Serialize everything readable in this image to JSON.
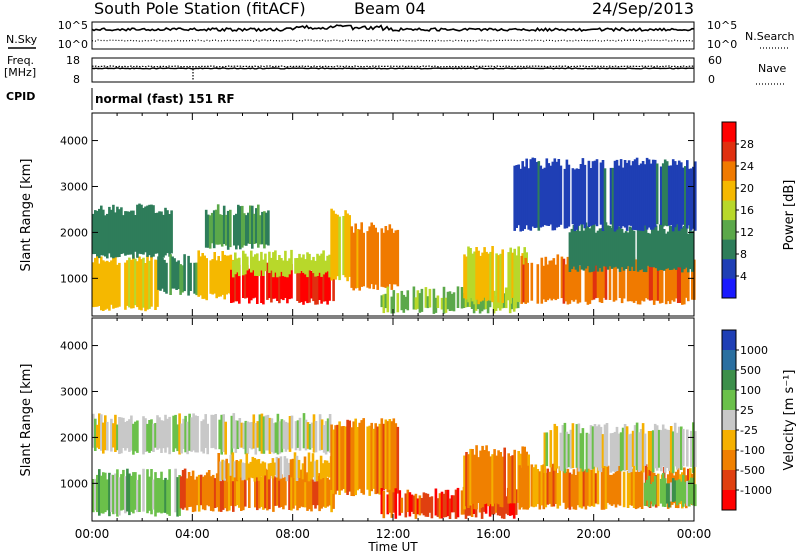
{
  "header": {
    "station": "South Pole Station (fitACF)",
    "beam": "Beam 04",
    "date": "24/Sep/2013"
  },
  "top_panels": {
    "nsky_label": "N.Sky",
    "nsky_left_ticks": [
      "10^5",
      "10^0"
    ],
    "nsky_right_ticks": [
      "10^5",
      "10^0"
    ],
    "nsearch_label": "N.Search",
    "freq_label": "Freq.",
    "freq_unit": "[MHz]",
    "freq_ticks": [
      "18",
      "8"
    ],
    "nave_ticks": [
      "60",
      "0"
    ],
    "nave_label": "Nave",
    "cpid_label": "CPID",
    "cpid_value": "normal (fast) 151 RF"
  },
  "colors": {
    "power_scale": [
      "#1a1aff",
      "#1f3fb5",
      "#2e7d5a",
      "#5ba84a",
      "#b8d82a",
      "#f5b800",
      "#f07a00",
      "#e03010",
      "#ff0000"
    ],
    "velocity_scale": [
      "#1f3fb5",
      "#2a6fa0",
      "#3c8f4a",
      "#6bc04a",
      "#c8c8c8",
      "#f5b000",
      "#f08000",
      "#e04010",
      "#ff0000"
    ]
  },
  "chart_data": [
    {
      "type": "heatmap",
      "title": "Power",
      "xlabel": "Time UT",
      "ylabel": "Slant Range [km]",
      "x_ticks": [
        "00:00",
        "04:00",
        "08:00",
        "12:00",
        "16:00",
        "20:00",
        "00:00"
      ],
      "xlim_hours": [
        0,
        24
      ],
      "y_ticks": [
        1000,
        2000,
        3000,
        4000
      ],
      "ylim": [
        180,
        4600
      ],
      "colorbar_label": "Power [dB]",
      "colorbar_ticks": [
        4,
        8,
        12,
        16,
        20,
        24,
        28
      ],
      "colorbar_range": [
        0,
        32
      ],
      "regions": [
        {
          "t0": 0.0,
          "t1": 2.6,
          "r_lo": 350,
          "r_hi": 1400,
          "level": 17
        },
        {
          "t0": 0.0,
          "t1": 3.2,
          "r_lo": 1500,
          "r_hi": 2500,
          "level": 7
        },
        {
          "t0": 2.6,
          "t1": 4.2,
          "r_lo": 700,
          "r_hi": 1400,
          "level": 8
        },
        {
          "t0": 4.2,
          "t1": 5.6,
          "r_lo": 600,
          "r_hi": 1500,
          "level": 18
        },
        {
          "t0": 4.5,
          "t1": 7.0,
          "r_lo": 1700,
          "r_hi": 2500,
          "level": 9
        },
        {
          "t0": 5.5,
          "t1": 9.6,
          "r_lo": 500,
          "r_hi": 1250,
          "level": 27
        },
        {
          "t0": 5.5,
          "t1": 9.8,
          "r_lo": 1100,
          "r_hi": 1500,
          "level": 14
        },
        {
          "t0": 9.5,
          "t1": 10.3,
          "r_lo": 1000,
          "r_hi": 2400,
          "level": 17
        },
        {
          "t0": 10.3,
          "t1": 12.2,
          "r_lo": 800,
          "r_hi": 2100,
          "level": 21
        },
        {
          "t0": 11.5,
          "t1": 17.0,
          "r_lo": 300,
          "r_hi": 700,
          "level": 12
        },
        {
          "t0": 14.8,
          "t1": 17.3,
          "r_lo": 500,
          "r_hi": 1600,
          "level": 16
        },
        {
          "t0": 17.0,
          "t1": 24.0,
          "r_lo": 500,
          "r_hi": 1400,
          "level": 22
        },
        {
          "t0": 19.0,
          "t1": 24.0,
          "r_lo": 1200,
          "r_hi": 2100,
          "level": 7
        },
        {
          "t0": 16.8,
          "t1": 24.0,
          "r_lo": 2100,
          "r_hi": 3500,
          "level": 4
        }
      ]
    },
    {
      "type": "heatmap",
      "title": "Velocity",
      "xlabel": "Time UT",
      "ylabel": "Slant Range [km]",
      "x_ticks": [
        "00:00",
        "04:00",
        "08:00",
        "12:00",
        "16:00",
        "20:00",
        "00:00"
      ],
      "xlim_hours": [
        0,
        24
      ],
      "y_ticks": [
        1000,
        2000,
        3000,
        4000
      ],
      "ylim": [
        180,
        4600
      ],
      "colorbar_label": "Velocity [m s⁻¹]",
      "colorbar_ticks": [
        "1000",
        "500",
        "100",
        "25",
        "-25",
        "-100",
        "-500",
        "-1000"
      ],
      "regions": [
        {
          "t0": 0.0,
          "t1": 3.5,
          "r_lo": 350,
          "r_hi": 1200,
          "level": 3
        },
        {
          "t0": 0.0,
          "t1": 9.5,
          "r_lo": 1700,
          "r_hi": 2400,
          "level": 4
        },
        {
          "t0": 3.5,
          "t1": 9.6,
          "r_lo": 450,
          "r_hi": 1200,
          "level": 6
        },
        {
          "t0": 5.0,
          "t1": 9.8,
          "r_lo": 1100,
          "r_hi": 1550,
          "level": 5
        },
        {
          "t0": 9.5,
          "t1": 12.2,
          "r_lo": 800,
          "r_hi": 2300,
          "level": 6
        },
        {
          "t0": 11.5,
          "t1": 17.0,
          "r_lo": 300,
          "r_hi": 800,
          "level": 7
        },
        {
          "t0": 14.8,
          "t1": 17.4,
          "r_lo": 500,
          "r_hi": 1700,
          "level": 6
        },
        {
          "t0": 17.0,
          "t1": 24.0,
          "r_lo": 500,
          "r_hi": 1300,
          "level": 6
        },
        {
          "t0": 18.0,
          "t1": 24.0,
          "r_lo": 1300,
          "r_hi": 2200,
          "level": 4
        },
        {
          "t0": 22.0,
          "t1": 24.0,
          "r_lo": 550,
          "r_hi": 1100,
          "level": 3
        }
      ]
    }
  ]
}
